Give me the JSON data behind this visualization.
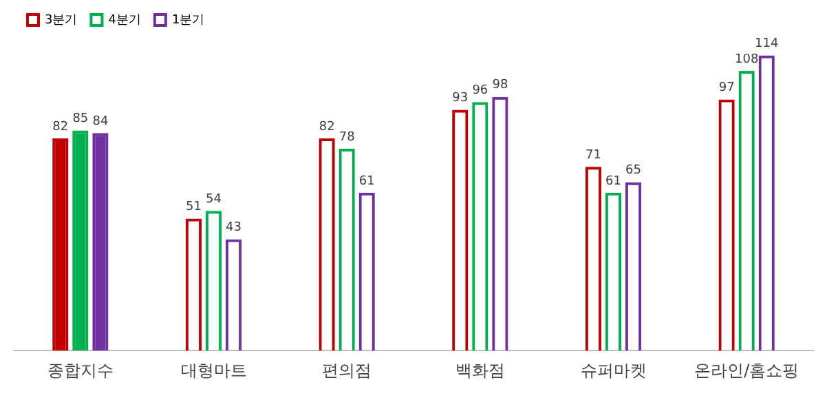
{
  "chart_data": {
    "type": "bar",
    "categories": [
      "종합지수",
      "대형마트",
      "편의점",
      "백화점",
      "슈퍼마켓",
      "온라인/홈쇼핑"
    ],
    "series": [
      {
        "name": "3분기",
        "color": "#c00000",
        "values": [
          82,
          51,
          82,
          93,
          71,
          97
        ]
      },
      {
        "name": "4분기",
        "color": "#00b050",
        "values": [
          85,
          54,
          78,
          96,
          61,
          108
        ]
      },
      {
        "name": "1분기",
        "color": "#7030a0",
        "values": [
          84,
          43,
          61,
          98,
          65,
          114
        ]
      }
    ],
    "data_labels": true,
    "legend": "top left"
  }
}
